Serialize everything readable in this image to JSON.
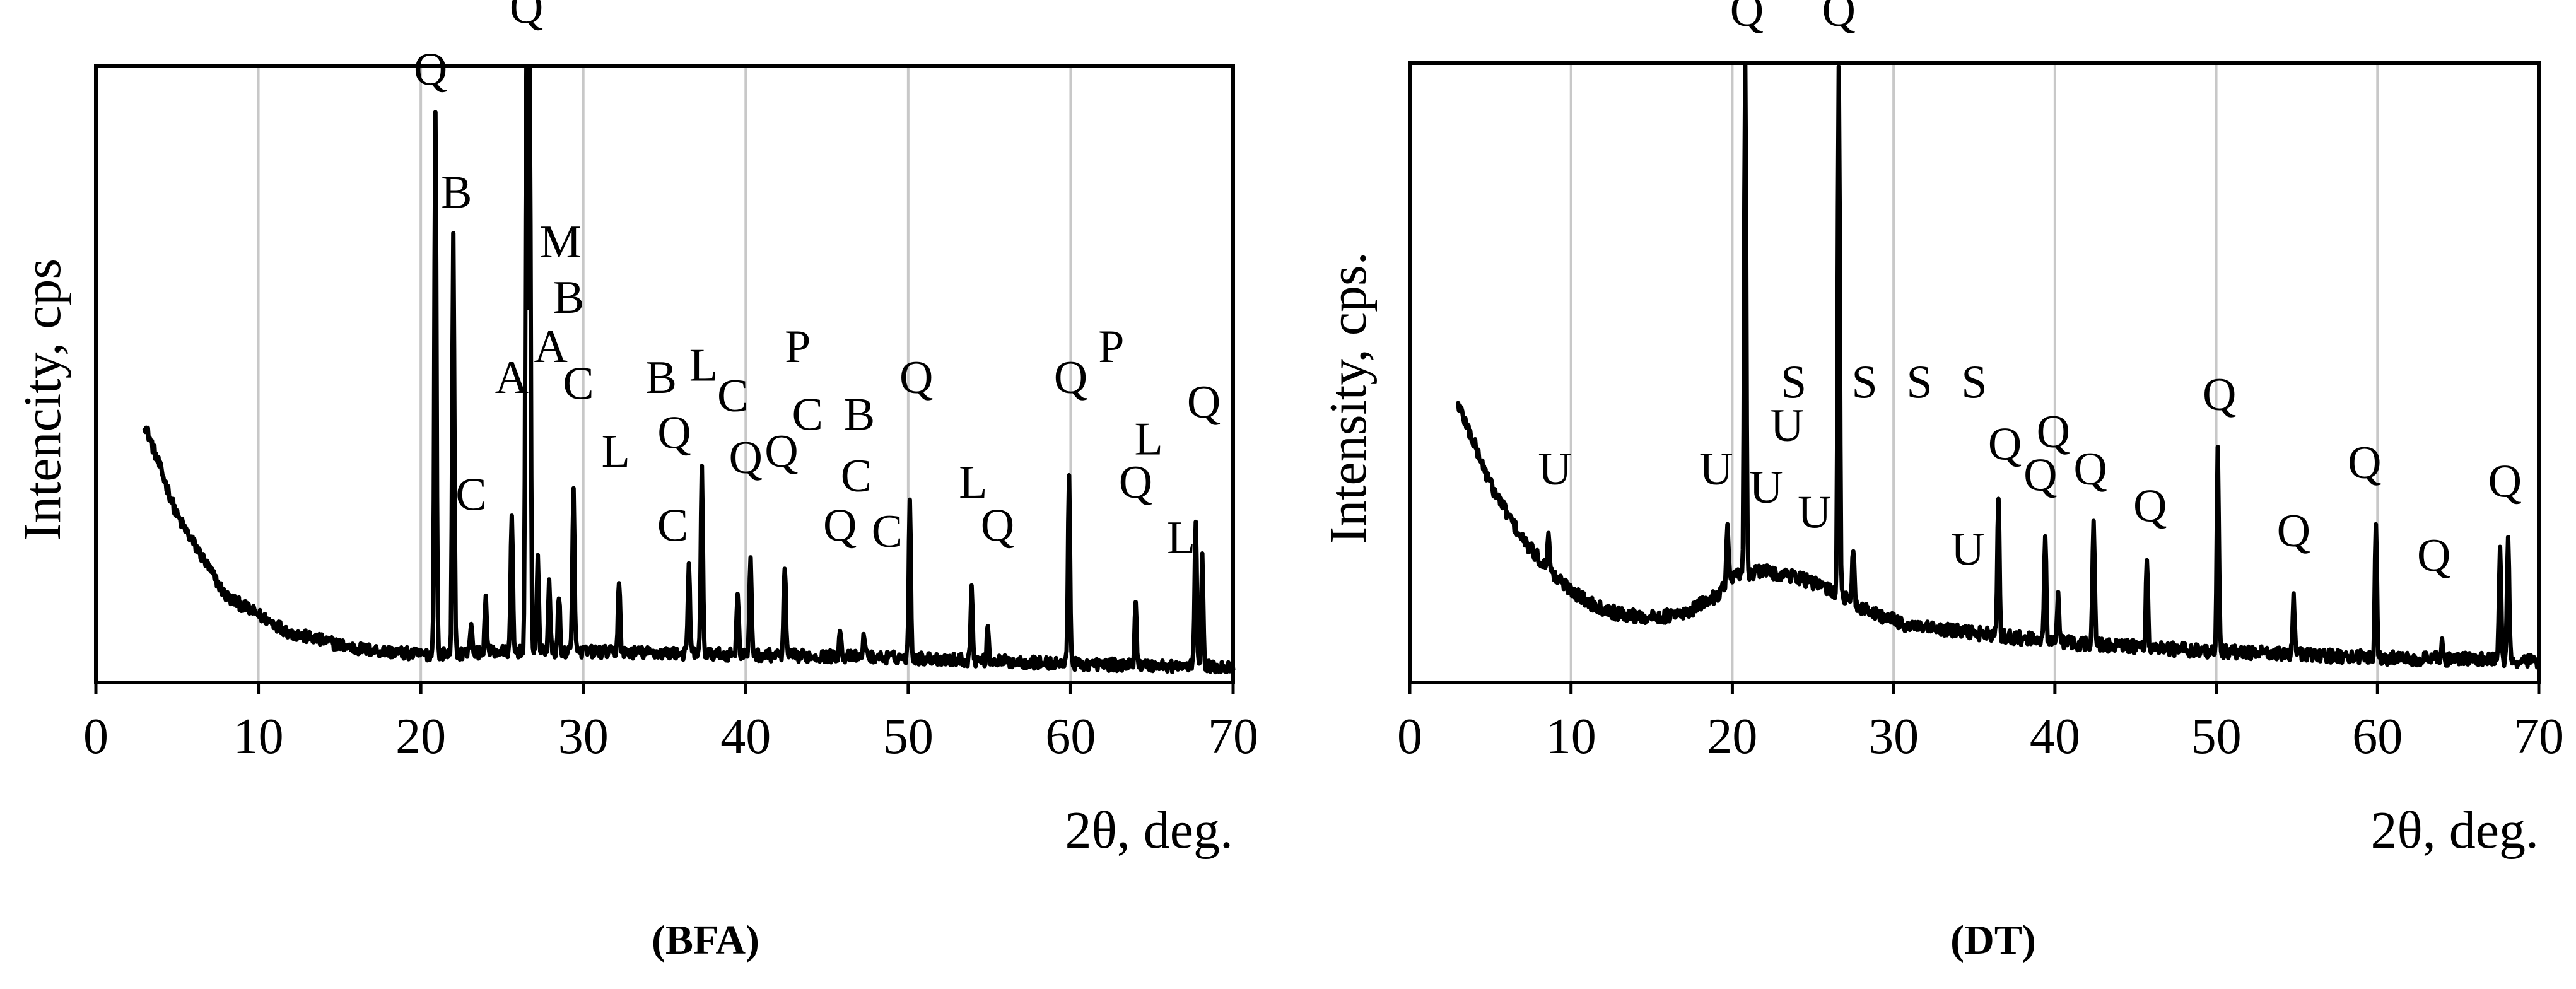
{
  "chart_data": [
    {
      "type": "line",
      "title": "(BFA)",
      "xlabel": "2θ, deg.",
      "ylabel": "Intencity, cps",
      "xlim": [
        0,
        70
      ],
      "ylim": [
        0,
        100
      ],
      "grid": true,
      "x_ticks": [
        0,
        10,
        20,
        30,
        40,
        50,
        60,
        70
      ],
      "background": {
        "start": 3,
        "end": 70,
        "points": [
          [
            3,
            42
          ],
          [
            5,
            27
          ],
          [
            8,
            14
          ],
          [
            12,
            8
          ],
          [
            16,
            5.5
          ],
          [
            20,
            4.5
          ],
          [
            25,
            5
          ],
          [
            30,
            5
          ],
          [
            40,
            4.5
          ],
          [
            50,
            4
          ],
          [
            60,
            3
          ],
          [
            70,
            2.5
          ]
        ],
        "noise": 1.0
      },
      "peaks": [
        {
          "x": 20.9,
          "y": 92
        },
        {
          "x": 22.0,
          "y": 72
        },
        {
          "x": 23.1,
          "y": 10
        },
        {
          "x": 24.0,
          "y": 14
        },
        {
          "x": 25.6,
          "y": 27
        },
        {
          "x": 26.5,
          "y": 100
        },
        {
          "x": 26.7,
          "y": 100
        },
        {
          "x": 27.2,
          "y": 20
        },
        {
          "x": 27.9,
          "y": 16
        },
        {
          "x": 28.5,
          "y": 14
        },
        {
          "x": 29.4,
          "y": 31
        },
        {
          "x": 32.2,
          "y": 17
        },
        {
          "x": 36.5,
          "y": 19
        },
        {
          "x": 37.3,
          "y": 35
        },
        {
          "x": 39.5,
          "y": 15
        },
        {
          "x": 40.3,
          "y": 20
        },
        {
          "x": 42.4,
          "y": 19
        },
        {
          "x": 45.8,
          "y": 9
        },
        {
          "x": 47.3,
          "y": 8
        },
        {
          "x": 50.1,
          "y": 29
        },
        {
          "x": 53.9,
          "y": 15
        },
        {
          "x": 54.9,
          "y": 9
        },
        {
          "x": 59.9,
          "y": 34
        },
        {
          "x": 64.0,
          "y": 13
        },
        {
          "x": 67.7,
          "y": 27
        },
        {
          "x": 68.1,
          "y": 20
        }
      ],
      "annotations": [
        {
          "text": "Q",
          "x": 20.6,
          "y": 97
        },
        {
          "text": "B",
          "x": 22.2,
          "y": 77
        },
        {
          "text": "C",
          "x": 23.1,
          "y": 28
        },
        {
          "text": "Q",
          "x": 26.5,
          "y": 107
        },
        {
          "text": "A",
          "x": 25.6,
          "y": 47
        },
        {
          "text": "M",
          "x": 28.6,
          "y": 69
        },
        {
          "text": "B",
          "x": 29.1,
          "y": 60
        },
        {
          "text": "A",
          "x": 28.0,
          "y": 52
        },
        {
          "text": "C",
          "x": 29.7,
          "y": 46
        },
        {
          "text": "L",
          "x": 32.0,
          "y": 35
        },
        {
          "text": "B",
          "x": 34.8,
          "y": 47
        },
        {
          "text": "L",
          "x": 37.4,
          "y": 49
        },
        {
          "text": "C",
          "x": 39.2,
          "y": 44
        },
        {
          "text": "Q",
          "x": 35.6,
          "y": 38
        },
        {
          "text": "C",
          "x": 35.5,
          "y": 23
        },
        {
          "text": "Q",
          "x": 40.0,
          "y": 34
        },
        {
          "text": "Q",
          "x": 42.2,
          "y": 35
        },
        {
          "text": "P",
          "x": 43.2,
          "y": 52
        },
        {
          "text": "C",
          "x": 43.8,
          "y": 41
        },
        {
          "text": "B",
          "x": 47.0,
          "y": 41
        },
        {
          "text": "C",
          "x": 46.8,
          "y": 31
        },
        {
          "text": "Q",
          "x": 45.8,
          "y": 23
        },
        {
          "text": "C",
          "x": 48.7,
          "y": 22
        },
        {
          "text": "Q",
          "x": 50.5,
          "y": 47
        },
        {
          "text": "L",
          "x": 54.0,
          "y": 30
        },
        {
          "text": "Q",
          "x": 55.5,
          "y": 23
        },
        {
          "text": "Q",
          "x": 60.0,
          "y": 47
        },
        {
          "text": "P",
          "x": 62.5,
          "y": 52
        },
        {
          "text": "L",
          "x": 64.8,
          "y": 37
        },
        {
          "text": "Q",
          "x": 64.0,
          "y": 30
        },
        {
          "text": "L",
          "x": 66.8,
          "y": 21
        },
        {
          "text": "Q",
          "x": 68.2,
          "y": 43
        }
      ]
    },
    {
      "type": "line",
      "title": "(DT)",
      "xlabel": "2θ, deg.",
      "ylabel": "Intensity, cps.",
      "xlim": [
        0,
        70
      ],
      "ylim": [
        0,
        100
      ],
      "grid": true,
      "x_ticks": [
        0,
        10,
        20,
        30,
        40,
        50,
        60,
        70
      ],
      "background": {
        "start": 3,
        "end": 70,
        "points": [
          [
            3,
            45
          ],
          [
            5,
            32
          ],
          [
            7,
            23
          ],
          [
            9,
            17
          ],
          [
            11,
            13
          ],
          [
            13,
            11
          ],
          [
            15,
            10.5
          ],
          [
            17,
            11
          ],
          [
            19,
            14
          ],
          [
            20,
            17
          ],
          [
            22,
            18
          ],
          [
            24,
            17
          ],
          [
            26,
            15
          ],
          [
            28,
            12
          ],
          [
            31,
            9
          ],
          [
            35,
            8
          ],
          [
            40,
            6.5
          ],
          [
            50,
            5
          ],
          [
            60,
            4
          ],
          [
            70,
            3.5
          ]
        ],
        "noise": 1.1
      },
      "peaks": [
        {
          "x": 8.6,
          "y": 25
        },
        {
          "x": 19.7,
          "y": 25
        },
        {
          "x": 20.8,
          "y": 100
        },
        {
          "x": 26.6,
          "y": 100
        },
        {
          "x": 27.5,
          "y": 22
        },
        {
          "x": 36.5,
          "y": 30
        },
        {
          "x": 39.4,
          "y": 23
        },
        {
          "x": 40.2,
          "y": 15
        },
        {
          "x": 42.4,
          "y": 27
        },
        {
          "x": 45.7,
          "y": 20
        },
        {
          "x": 50.1,
          "y": 37
        },
        {
          "x": 54.8,
          "y": 14
        },
        {
          "x": 59.9,
          "y": 26
        },
        {
          "x": 64.0,
          "y": 7
        },
        {
          "x": 67.6,
          "y": 22
        },
        {
          "x": 68.1,
          "y": 24
        }
      ],
      "annotations": [
        {
          "text": "Q",
          "x": 20.9,
          "y": 106
        },
        {
          "text": "Q",
          "x": 26.6,
          "y": 106
        },
        {
          "text": "U",
          "x": 9.0,
          "y": 32
        },
        {
          "text": "U",
          "x": 19.0,
          "y": 32
        },
        {
          "text": "S",
          "x": 23.8,
          "y": 46
        },
        {
          "text": "S",
          "x": 28.2,
          "y": 46
        },
        {
          "text": "S",
          "x": 31.6,
          "y": 46
        },
        {
          "text": "S",
          "x": 35.0,
          "y": 46
        },
        {
          "text": "U",
          "x": 23.4,
          "y": 39
        },
        {
          "text": "U",
          "x": 22.1,
          "y": 29
        },
        {
          "text": "U",
          "x": 25.1,
          "y": 25
        },
        {
          "text": "U",
          "x": 34.6,
          "y": 19
        },
        {
          "text": "Q",
          "x": 36.9,
          "y": 36
        },
        {
          "text": "Q",
          "x": 39.9,
          "y": 38
        },
        {
          "text": "Q",
          "x": 39.1,
          "y": 31
        },
        {
          "text": "Q",
          "x": 42.2,
          "y": 32
        },
        {
          "text": "Q",
          "x": 45.9,
          "y": 26
        },
        {
          "text": "Q",
          "x": 50.2,
          "y": 44
        },
        {
          "text": "Q",
          "x": 54.8,
          "y": 22
        },
        {
          "text": "Q",
          "x": 59.2,
          "y": 33
        },
        {
          "text": "Q",
          "x": 63.5,
          "y": 18
        },
        {
          "text": "Q",
          "x": 67.9,
          "y": 30
        }
      ]
    }
  ]
}
